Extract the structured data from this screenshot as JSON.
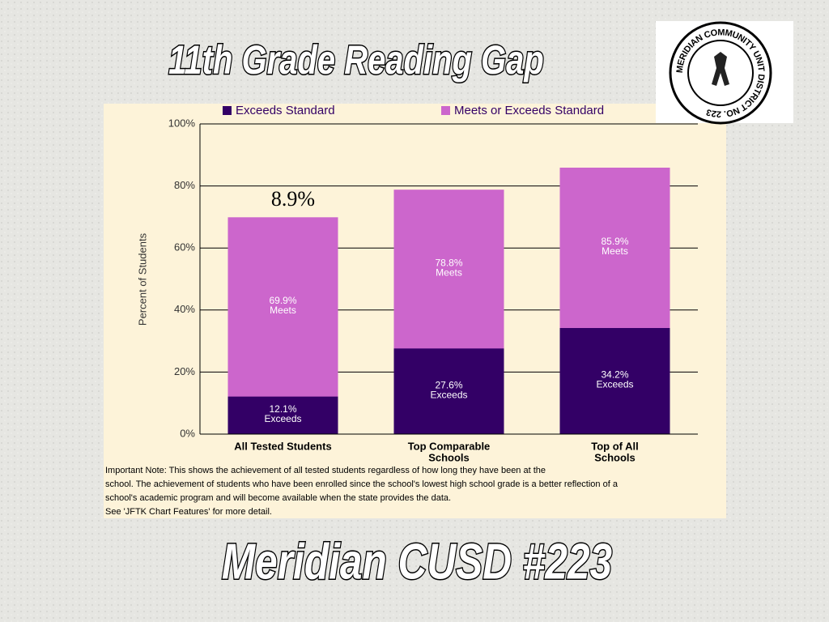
{
  "slide_title": "11th Grade Reading Gap",
  "footer": "Meridian CUSD #223",
  "logo_text": "MERIDIAN COMMUNITY UNIT DISTRICT NO. 223",
  "chart_data": {
    "type": "overlap_bar",
    "y_label": "Percent of Students",
    "categories": [
      [
        "All Tested Students"
      ],
      [
        "Top Comparable",
        "Schools"
      ],
      [
        "Top of All",
        "Schools"
      ]
    ],
    "series": [
      {
        "name": "Meets or Exceeds Standard",
        "color": "#cc66cc",
        "mark_label": "Meets",
        "values": [
          69.9,
          78.8,
          85.9
        ],
        "value_labels": [
          "69.9%",
          "78.8%",
          "85.9%"
        ]
      },
      {
        "name": "Exceeds Standard",
        "color": "#330066",
        "mark_label": "Exceeds",
        "values": [
          12.1,
          27.6,
          34.2
        ],
        "value_labels": [
          "12.1%",
          "27.6%",
          "34.2%"
        ]
      }
    ],
    "ylim": [
      0,
      100
    ],
    "yticks": [
      {
        "value": 0,
        "label": "0%"
      },
      {
        "value": 20,
        "label": "20%"
      },
      {
        "value": 40,
        "label": "40%"
      },
      {
        "value": 60,
        "label": "60%"
      },
      {
        "value": 80,
        "label": "80%"
      },
      {
        "value": 100,
        "label": "100%"
      }
    ],
    "grid": true,
    "annotation": "8.9%",
    "note": [
      "Important Note: This shows the achievement of all tested students regardless of how long they have been at the",
      "school.  The achievement of students who have been enrolled since the school's lowest high school grade is a better reflection of a",
      "school's academic program and will become available when the state provides the data.",
      "See 'JFTK Chart Features' for more detail."
    ]
  }
}
